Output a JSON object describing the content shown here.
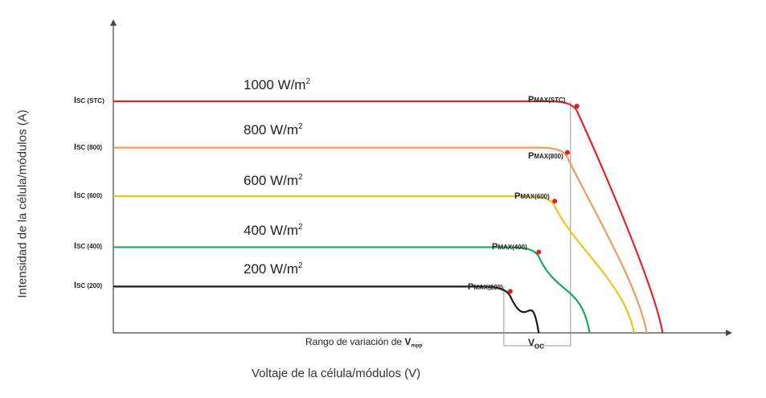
{
  "chart_data": {
    "type": "line",
    "xlabel": "Voltaje de la célula/módulos (V)",
    "ylabel": "Intensidad de la célula/módulos (A)",
    "annotation_range": {
      "text": "Rango de variación de ",
      "bold": "V",
      "sub": "mpp"
    },
    "annotation_voc": {
      "text": "V",
      "sub": "OC"
    },
    "series": [
      {
        "name": "1000 W/m",
        "sup": "2",
        "color": "#e0262a",
        "isc": 1.0,
        "voc": 0.865,
        "vmp": 0.72,
        "isc_label": "I",
        "isc_sub": "SC (STC)",
        "pmax_label": "P",
        "pmax_sub": "MAX(STC)"
      },
      {
        "name": "800 W/m",
        "sup": "2",
        "color": "#ef9b59",
        "isc": 0.8,
        "voc": 0.84,
        "vmp": 0.705,
        "isc_label": "I",
        "isc_sub": "SC (800)",
        "pmax_label": "P",
        "pmax_sub": "MAX(800)"
      },
      {
        "name": "600 W/m",
        "sup": "2",
        "color": "#f2c21b",
        "isc": 0.59,
        "voc": 0.82,
        "vmp": 0.685,
        "isc_label": "I",
        "isc_sub": "SC (600)",
        "pmax_label": "P",
        "pmax_sub": "MAX(600)"
      },
      {
        "name": "400 W/m",
        "sup": "2",
        "color": "#1aa85a",
        "isc": 0.37,
        "voc": 0.75,
        "vmp": 0.66,
        "isc_label": "I",
        "isc_sub": "SC (400)",
        "pmax_label": "P",
        "pmax_sub": "MAX(400)"
      },
      {
        "name": "200 W/m",
        "sup": "2",
        "color": "#1a1a1a",
        "isc": 0.2,
        "voc": 0.67,
        "vmp": 0.615,
        "isc_label": "I",
        "isc_sub": "SC (200)",
        "pmax_label": "P",
        "pmax_sub": "MAX(200)"
      }
    ],
    "vmpp_range": [
      0.615,
      0.72
    ],
    "xlim": [
      0,
      1
    ],
    "ylim": [
      0,
      1.05
    ],
    "grid": false
  }
}
